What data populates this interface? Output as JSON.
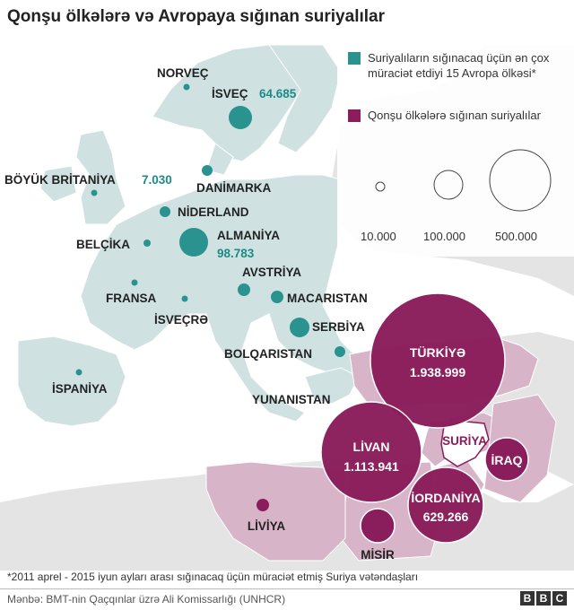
{
  "title": "Qonşu ölkələrə və Avropaya sığınan suriyalılar",
  "colors": {
    "europe_land": "#cfe2e1",
    "europe_circle": "#2a9390",
    "neighbor_land": "#d8b4c8",
    "neighbor_circle": "#8a1d5b",
    "other_land": "#e4e4e4",
    "sea": "#ffffff"
  },
  "legend": {
    "europe_label": "Suriyalıların sığınacaq üçün ən çox müraciət etdiyi 15 Avropa ölkəsi*",
    "neighbor_label": "Qonşu ölkələrə sığınan suriyalılar",
    "sizes": [
      {
        "label": "10.000",
        "value": 10000
      },
      {
        "label": "100.000",
        "value": 100000
      },
      {
        "label": "500.000",
        "value": 500000
      }
    ]
  },
  "europe_countries": [
    {
      "name": "NORVEÇ",
      "value_label": ""
    },
    {
      "name": "İSVEÇ",
      "value_label": "64.685"
    },
    {
      "name": "BÖYÜK BRİTANİYA",
      "value_label": "7.030"
    },
    {
      "name": "DANİMARKA",
      "value_label": ""
    },
    {
      "name": "NİDERLAND",
      "value_label": ""
    },
    {
      "name": "BELÇİKA",
      "value_label": ""
    },
    {
      "name": "ALMANİYA",
      "value_label": "98.783"
    },
    {
      "name": "AVSTRİYA",
      "value_label": ""
    },
    {
      "name": "FRANSA",
      "value_label": ""
    },
    {
      "name": "İSVEÇRƏ",
      "value_label": ""
    },
    {
      "name": "MACARISTAN",
      "value_label": ""
    },
    {
      "name": "SERBİYA",
      "value_label": ""
    },
    {
      "name": "BOLQARISTAN",
      "value_label": ""
    },
    {
      "name": "İSPANİYA",
      "value_label": ""
    },
    {
      "name": "YUNANISTAN",
      "value_label": ""
    }
  ],
  "neighbor_countries": [
    {
      "name": "TÜRKİYƏ",
      "value_label": "1.938.999"
    },
    {
      "name": "LİVAN",
      "value_label": "1.113.941"
    },
    {
      "name": "İORDANİYA",
      "value_label": "629.266"
    },
    {
      "name": "İRAQ",
      "value_label": ""
    },
    {
      "name": "MİSİR",
      "value_label": ""
    },
    {
      "name": "LİVİYA",
      "value_label": ""
    }
  ],
  "syria_label": "SURİYA",
  "footnote": "*2011 aprel - 2015 iyun ayları arası sığınacaq üçün müraciət etmiş Suriya vətəndaşları",
  "source": "Mənbə: BMT-nin Qaçqınlar üzrə Ali Komissarlığı (UNHCR)",
  "logo": [
    "B",
    "B",
    "C"
  ]
}
